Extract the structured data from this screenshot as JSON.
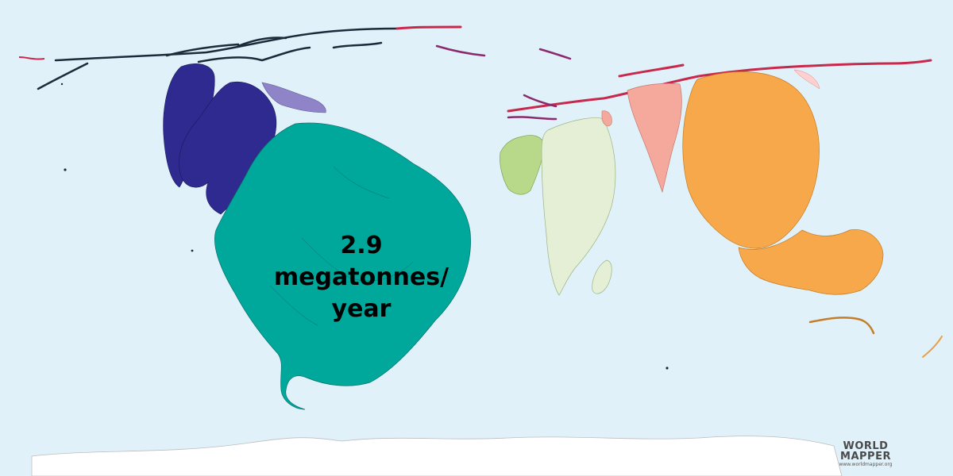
{
  "map": {
    "value_text": [
      "2.9",
      "megatonnes/",
      "year"
    ],
    "colors": {
      "ocean": "#e1f1f9",
      "north_america": "#2e2a8f",
      "central_america": "#8f84c7",
      "south_america": "#00a89b",
      "arctic_islands": "#1c2b3a",
      "africa_north": "#b8d98a",
      "africa_south": "#e4efd6",
      "middle_east": "#f5a89c",
      "asia_east": "#f6a84a",
      "europe": "#c9284d",
      "antarctica": "#ffffff"
    }
  },
  "logo": {
    "line1": "WORLD",
    "line2": "MAPPER",
    "url": "www.worldmapper.org"
  }
}
